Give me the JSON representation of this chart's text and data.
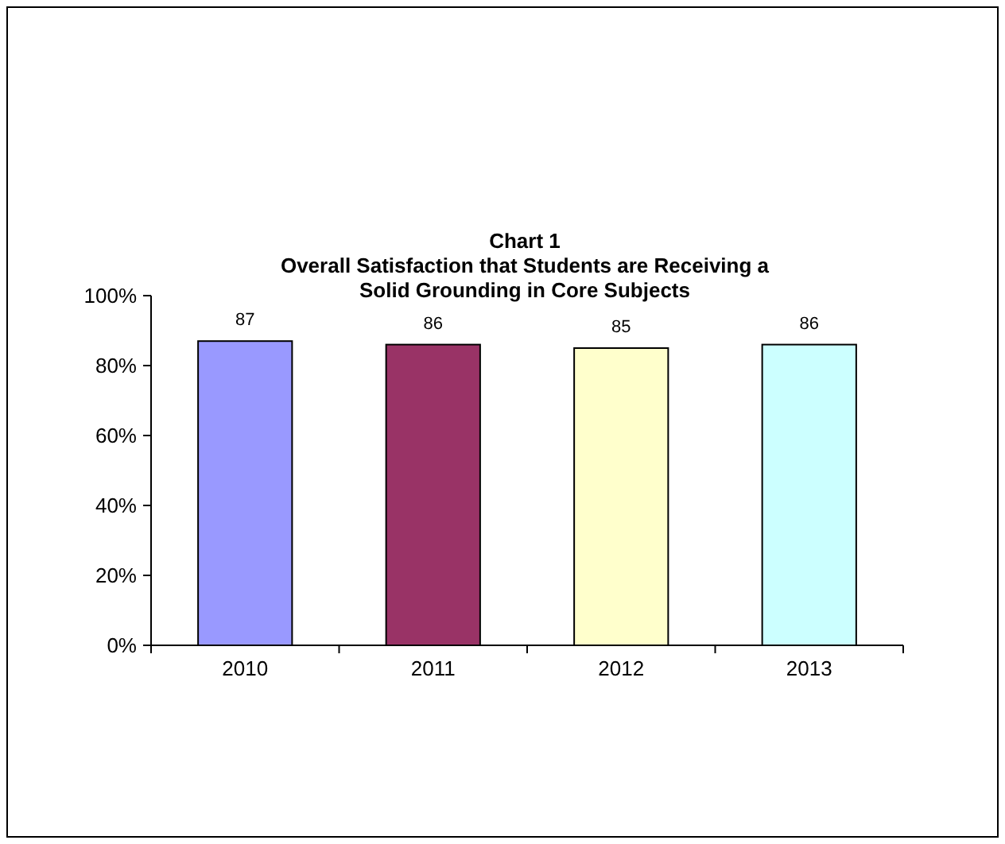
{
  "chart_data": {
    "type": "bar",
    "title": "Chart 1\nOverall Satisfaction that Students are Receiving a\nSolid Grounding in Core Subjects",
    "categories": [
      "2010",
      "2011",
      "2012",
      "2013"
    ],
    "values": [
      87,
      86,
      85,
      86
    ],
    "colors": [
      "#9999ff",
      "#993366",
      "#ffffcc",
      "#ccffff"
    ],
    "ylim": [
      0,
      100
    ],
    "yticks": [
      {
        "value": 0,
        "label": "0%"
      },
      {
        "value": 20,
        "label": "20%"
      },
      {
        "value": 40,
        "label": "40%"
      },
      {
        "value": 60,
        "label": "60%"
      },
      {
        "value": 80,
        "label": "80%"
      },
      {
        "value": 100,
        "label": "100%"
      }
    ],
    "data_labels": true,
    "grid": false
  }
}
